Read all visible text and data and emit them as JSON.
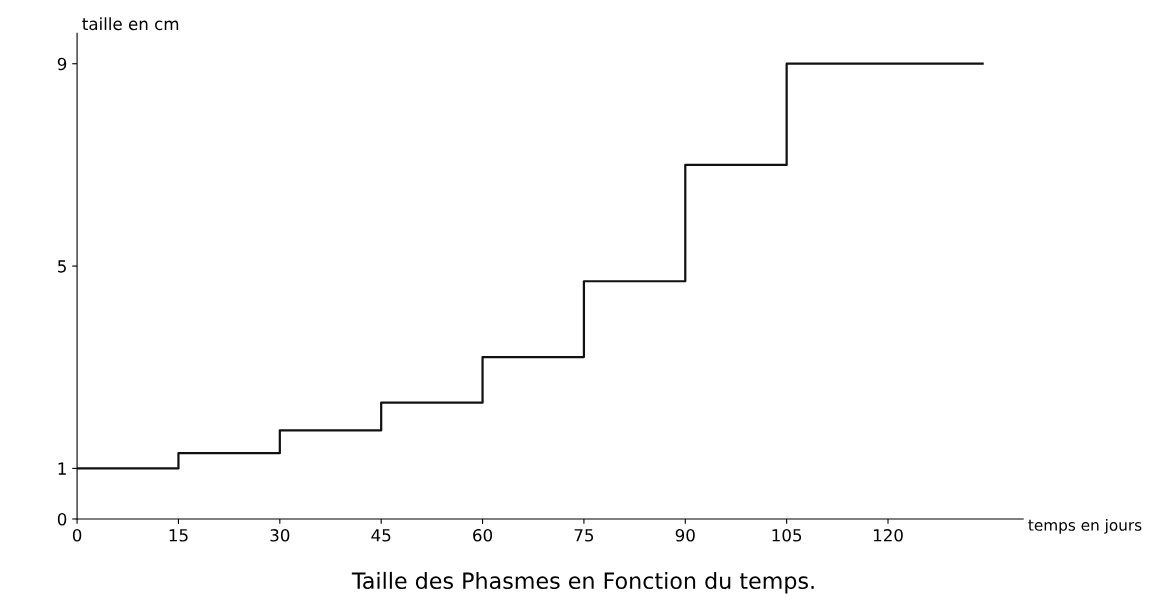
{
  "chart_data": {
    "type": "step",
    "title": "Taille des Phasmes en Fonction du temps.",
    "xlabel": "temps en jours",
    "ylabel": "taille en cm",
    "x": [
      0,
      15,
      30,
      45,
      60,
      75,
      90,
      105,
      134
    ],
    "series": [
      {
        "color": "#111111",
        "values": [
          1,
          1.3,
          1.75,
          2.3,
          3.2,
          4.7,
          7,
          9,
          9
        ]
      }
    ],
    "xlim": [
      0,
      140
    ],
    "ylim": [
      0,
      9.6
    ],
    "xticks": [
      0,
      15,
      30,
      45,
      60,
      75,
      90,
      105,
      120
    ],
    "yticks": [
      0,
      1,
      5,
      9
    ],
    "grid": false,
    "legend": false
  }
}
